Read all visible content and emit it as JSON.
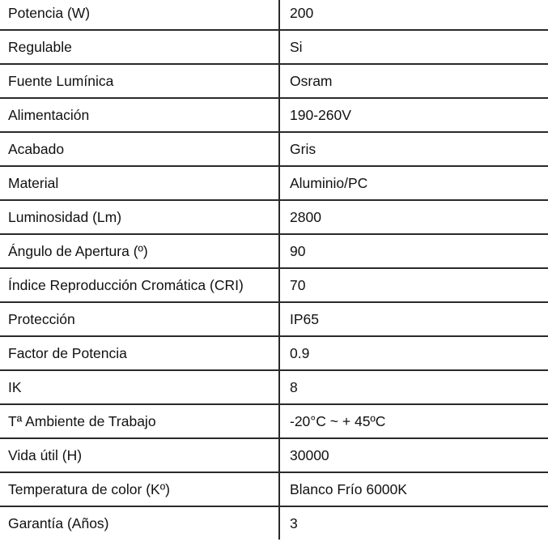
{
  "specs": [
    {
      "label": "Potencia (W)",
      "value": "200"
    },
    {
      "label": "Regulable",
      "value": "Si"
    },
    {
      "label": "Fuente Lumínica",
      "value": "Osram"
    },
    {
      "label": "Alimentación",
      "value": "190-260V"
    },
    {
      "label": "Acabado",
      "value": "Gris"
    },
    {
      "label": "Material",
      "value": "Aluminio/PC"
    },
    {
      "label": "Luminosidad (Lm)",
      "value": "2800"
    },
    {
      "label": "Ángulo de Apertura (º)",
      "value": "90"
    },
    {
      "label": "Índice Reproducción Cromática (CRI)",
      "value": "70"
    },
    {
      "label": "Protección",
      "value": "IP65"
    },
    {
      "label": "Factor de Potencia",
      "value": "0.9"
    },
    {
      "label": "IK",
      "value": "8"
    },
    {
      "label": "Tª Ambiente de Trabajo",
      "value": "-20°C ~ + 45ºC"
    },
    {
      "label": "Vida útil (H)",
      "value": "30000"
    },
    {
      "label": "Temperatura de color (Kº)",
      "value": "Blanco Frío 6000K"
    },
    {
      "label": "Garantía (Años)",
      "value": "3"
    }
  ]
}
